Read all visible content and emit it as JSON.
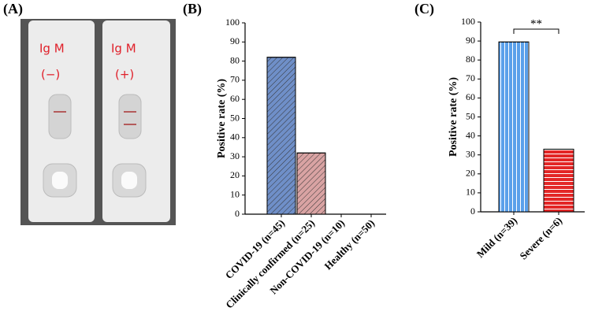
{
  "panel_labels": [
    "(A)",
    "(B)",
    "(C)"
  ],
  "photo": {
    "strips": [
      {
        "label": "Ig M",
        "sign": "(−)"
      },
      {
        "label": "Ig M",
        "sign": "(+)"
      }
    ]
  },
  "chart_data": [
    {
      "type": "bar",
      "y_label": "Positive rate (%)",
      "categories": [
        "COVID-19 (n=45)",
        "Clinically confirmed (n=25)",
        "Non-COVID-19 (n=10)",
        "Healthy (n=50)"
      ],
      "values": [
        82,
        32,
        0,
        0
      ],
      "colors": [
        "#6f8fc8",
        "#d9a3a3",
        "#6f8fc8",
        "#6f8fc8"
      ],
      "ylim": [
        0,
        100
      ],
      "yticks": [
        0,
        10,
        20,
        30,
        40,
        50,
        60,
        70,
        80,
        90,
        100
      ]
    },
    {
      "type": "bar",
      "y_label": "Positive rate (%)",
      "categories": [
        "Mild (n=39)",
        "Severe (n=6)"
      ],
      "values": [
        89.5,
        33
      ],
      "colors": [
        "#5aa0ea",
        "#e32626"
      ],
      "ylim": [
        0,
        100
      ],
      "yticks": [
        0,
        10,
        20,
        30,
        40,
        50,
        60,
        70,
        80,
        90,
        100
      ],
      "annotation": "**"
    }
  ]
}
